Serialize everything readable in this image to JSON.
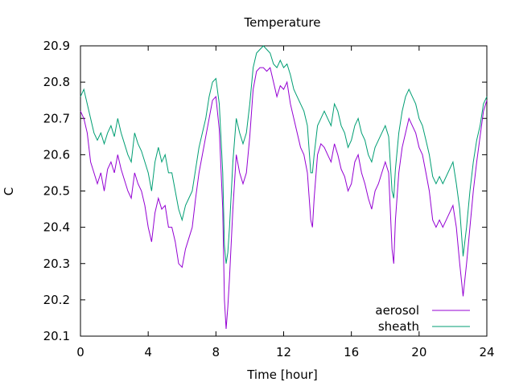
{
  "chart_data": {
    "type": "line",
    "title": "Temperature",
    "xlabel": "Time [hour]",
    "ylabel": "C",
    "xlim": [
      0,
      24
    ],
    "ylim": [
      20.1,
      20.9
    ],
    "xticks": [
      "0",
      "4",
      "8",
      "12",
      "16",
      "20",
      "24"
    ],
    "yticks": [
      "20.1",
      "20.2",
      "20.3",
      "20.4",
      "20.5",
      "20.6",
      "20.7",
      "20.8",
      "20.9"
    ],
    "grid": false,
    "legend_position": "bottom-right",
    "series": [
      {
        "name": "aerosol",
        "color": "#9400d3",
        "points": [
          [
            0.0,
            20.72
          ],
          [
            0.2,
            20.7
          ],
          [
            0.4,
            20.66
          ],
          [
            0.6,
            20.58
          ],
          [
            0.8,
            20.55
          ],
          [
            1.0,
            20.52
          ],
          [
            1.2,
            20.55
          ],
          [
            1.4,
            20.5
          ],
          [
            1.6,
            20.56
          ],
          [
            1.8,
            20.58
          ],
          [
            2.0,
            20.55
          ],
          [
            2.2,
            20.6
          ],
          [
            2.4,
            20.56
          ],
          [
            2.6,
            20.53
          ],
          [
            2.8,
            20.5
          ],
          [
            3.0,
            20.48
          ],
          [
            3.2,
            20.55
          ],
          [
            3.4,
            20.52
          ],
          [
            3.6,
            20.5
          ],
          [
            3.8,
            20.46
          ],
          [
            4.0,
            20.4
          ],
          [
            4.2,
            20.36
          ],
          [
            4.4,
            20.44
          ],
          [
            4.6,
            20.48
          ],
          [
            4.8,
            20.45
          ],
          [
            5.0,
            20.46
          ],
          [
            5.2,
            20.4
          ],
          [
            5.4,
            20.4
          ],
          [
            5.6,
            20.36
          ],
          [
            5.8,
            20.3
          ],
          [
            6.0,
            20.29
          ],
          [
            6.2,
            20.34
          ],
          [
            6.4,
            20.37
          ],
          [
            6.6,
            20.4
          ],
          [
            6.8,
            20.48
          ],
          [
            7.0,
            20.55
          ],
          [
            7.2,
            20.6
          ],
          [
            7.4,
            20.65
          ],
          [
            7.6,
            20.7
          ],
          [
            7.8,
            20.75
          ],
          [
            8.0,
            20.76
          ],
          [
            8.2,
            20.67
          ],
          [
            8.4,
            20.45
          ],
          [
            8.5,
            20.2
          ],
          [
            8.6,
            20.12
          ],
          [
            8.7,
            20.18
          ],
          [
            8.8,
            20.26
          ],
          [
            9.0,
            20.45
          ],
          [
            9.2,
            20.6
          ],
          [
            9.4,
            20.55
          ],
          [
            9.6,
            20.52
          ],
          [
            9.8,
            20.55
          ],
          [
            10.0,
            20.65
          ],
          [
            10.2,
            20.78
          ],
          [
            10.4,
            20.83
          ],
          [
            10.6,
            20.84
          ],
          [
            10.8,
            20.84
          ],
          [
            11.0,
            20.83
          ],
          [
            11.2,
            20.84
          ],
          [
            11.4,
            20.8
          ],
          [
            11.6,
            20.76
          ],
          [
            11.8,
            20.79
          ],
          [
            12.0,
            20.78
          ],
          [
            12.2,
            20.8
          ],
          [
            12.4,
            20.74
          ],
          [
            12.6,
            20.7
          ],
          [
            12.8,
            20.66
          ],
          [
            13.0,
            20.62
          ],
          [
            13.2,
            20.6
          ],
          [
            13.4,
            20.55
          ],
          [
            13.6,
            20.42
          ],
          [
            13.7,
            20.4
          ],
          [
            13.8,
            20.48
          ],
          [
            14.0,
            20.6
          ],
          [
            14.2,
            20.63
          ],
          [
            14.4,
            20.62
          ],
          [
            14.6,
            20.6
          ],
          [
            14.8,
            20.58
          ],
          [
            15.0,
            20.63
          ],
          [
            15.2,
            20.6
          ],
          [
            15.4,
            20.56
          ],
          [
            15.6,
            20.54
          ],
          [
            15.8,
            20.5
          ],
          [
            16.0,
            20.52
          ],
          [
            16.2,
            20.58
          ],
          [
            16.4,
            20.6
          ],
          [
            16.6,
            20.55
          ],
          [
            16.8,
            20.52
          ],
          [
            17.0,
            20.48
          ],
          [
            17.2,
            20.45
          ],
          [
            17.4,
            20.5
          ],
          [
            17.6,
            20.52
          ],
          [
            17.8,
            20.55
          ],
          [
            18.0,
            20.58
          ],
          [
            18.2,
            20.55
          ],
          [
            18.4,
            20.34
          ],
          [
            18.5,
            20.3
          ],
          [
            18.6,
            20.42
          ],
          [
            18.8,
            20.55
          ],
          [
            19.0,
            20.62
          ],
          [
            19.2,
            20.66
          ],
          [
            19.4,
            20.7
          ],
          [
            19.6,
            20.68
          ],
          [
            19.8,
            20.66
          ],
          [
            20.0,
            20.62
          ],
          [
            20.2,
            20.6
          ],
          [
            20.4,
            20.55
          ],
          [
            20.6,
            20.5
          ],
          [
            20.8,
            20.42
          ],
          [
            21.0,
            20.4
          ],
          [
            21.2,
            20.42
          ],
          [
            21.4,
            20.4
          ],
          [
            21.6,
            20.42
          ],
          [
            21.8,
            20.44
          ],
          [
            22.0,
            20.46
          ],
          [
            22.2,
            20.4
          ],
          [
            22.4,
            20.3
          ],
          [
            22.6,
            20.21
          ],
          [
            22.8,
            20.3
          ],
          [
            23.0,
            20.4
          ],
          [
            23.2,
            20.5
          ],
          [
            23.4,
            20.58
          ],
          [
            23.6,
            20.65
          ],
          [
            23.8,
            20.72
          ],
          [
            24.0,
            20.75
          ]
        ]
      },
      {
        "name": "sheath",
        "color": "#009e73",
        "points": [
          [
            0.0,
            20.76
          ],
          [
            0.2,
            20.78
          ],
          [
            0.4,
            20.74
          ],
          [
            0.6,
            20.7
          ],
          [
            0.8,
            20.66
          ],
          [
            1.0,
            20.64
          ],
          [
            1.2,
            20.66
          ],
          [
            1.4,
            20.63
          ],
          [
            1.6,
            20.66
          ],
          [
            1.8,
            20.68
          ],
          [
            2.0,
            20.65
          ],
          [
            2.2,
            20.7
          ],
          [
            2.4,
            20.66
          ],
          [
            2.6,
            20.63
          ],
          [
            2.8,
            20.6
          ],
          [
            3.0,
            20.58
          ],
          [
            3.2,
            20.66
          ],
          [
            3.4,
            20.63
          ],
          [
            3.6,
            20.61
          ],
          [
            3.8,
            20.58
          ],
          [
            4.0,
            20.55
          ],
          [
            4.2,
            20.5
          ],
          [
            4.4,
            20.58
          ],
          [
            4.6,
            20.62
          ],
          [
            4.8,
            20.58
          ],
          [
            5.0,
            20.6
          ],
          [
            5.2,
            20.55
          ],
          [
            5.4,
            20.55
          ],
          [
            5.6,
            20.5
          ],
          [
            5.8,
            20.45
          ],
          [
            6.0,
            20.42
          ],
          [
            6.2,
            20.46
          ],
          [
            6.4,
            20.48
          ],
          [
            6.6,
            20.5
          ],
          [
            6.8,
            20.56
          ],
          [
            7.0,
            20.62
          ],
          [
            7.2,
            20.66
          ],
          [
            7.4,
            20.7
          ],
          [
            7.6,
            20.76
          ],
          [
            7.8,
            20.8
          ],
          [
            8.0,
            20.81
          ],
          [
            8.2,
            20.74
          ],
          [
            8.4,
            20.55
          ],
          [
            8.5,
            20.35
          ],
          [
            8.6,
            20.3
          ],
          [
            8.7,
            20.33
          ],
          [
            8.8,
            20.4
          ],
          [
            9.0,
            20.58
          ],
          [
            9.2,
            20.7
          ],
          [
            9.4,
            20.66
          ],
          [
            9.6,
            20.63
          ],
          [
            9.8,
            20.66
          ],
          [
            10.0,
            20.74
          ],
          [
            10.2,
            20.84
          ],
          [
            10.4,
            20.88
          ],
          [
            10.6,
            20.89
          ],
          [
            10.8,
            20.9
          ],
          [
            11.0,
            20.89
          ],
          [
            11.2,
            20.88
          ],
          [
            11.4,
            20.85
          ],
          [
            11.6,
            20.84
          ],
          [
            11.8,
            20.86
          ],
          [
            12.0,
            20.84
          ],
          [
            12.2,
            20.85
          ],
          [
            12.4,
            20.82
          ],
          [
            12.6,
            20.78
          ],
          [
            12.8,
            20.76
          ],
          [
            13.0,
            20.74
          ],
          [
            13.2,
            20.72
          ],
          [
            13.4,
            20.68
          ],
          [
            13.6,
            20.55
          ],
          [
            13.7,
            20.55
          ],
          [
            13.8,
            20.6
          ],
          [
            14.0,
            20.68
          ],
          [
            14.2,
            20.7
          ],
          [
            14.4,
            20.72
          ],
          [
            14.6,
            20.7
          ],
          [
            14.8,
            20.68
          ],
          [
            15.0,
            20.74
          ],
          [
            15.2,
            20.72
          ],
          [
            15.4,
            20.68
          ],
          [
            15.6,
            20.66
          ],
          [
            15.8,
            20.62
          ],
          [
            16.0,
            20.64
          ],
          [
            16.2,
            20.68
          ],
          [
            16.4,
            20.7
          ],
          [
            16.6,
            20.66
          ],
          [
            16.8,
            20.64
          ],
          [
            17.0,
            20.6
          ],
          [
            17.2,
            20.58
          ],
          [
            17.4,
            20.62
          ],
          [
            17.6,
            20.64
          ],
          [
            17.8,
            20.66
          ],
          [
            18.0,
            20.68
          ],
          [
            18.2,
            20.65
          ],
          [
            18.4,
            20.5
          ],
          [
            18.5,
            20.48
          ],
          [
            18.6,
            20.56
          ],
          [
            18.8,
            20.66
          ],
          [
            19.0,
            20.72
          ],
          [
            19.2,
            20.76
          ],
          [
            19.4,
            20.78
          ],
          [
            19.6,
            20.76
          ],
          [
            19.8,
            20.74
          ],
          [
            20.0,
            20.7
          ],
          [
            20.2,
            20.68
          ],
          [
            20.4,
            20.64
          ],
          [
            20.6,
            20.6
          ],
          [
            20.8,
            20.54
          ],
          [
            21.0,
            20.52
          ],
          [
            21.2,
            20.54
          ],
          [
            21.4,
            20.52
          ],
          [
            21.6,
            20.54
          ],
          [
            21.8,
            20.56
          ],
          [
            22.0,
            20.58
          ],
          [
            22.2,
            20.52
          ],
          [
            22.4,
            20.45
          ],
          [
            22.6,
            20.32
          ],
          [
            22.8,
            20.4
          ],
          [
            23.0,
            20.5
          ],
          [
            23.2,
            20.58
          ],
          [
            23.4,
            20.64
          ],
          [
            23.6,
            20.68
          ],
          [
            23.8,
            20.74
          ],
          [
            24.0,
            20.76
          ]
        ]
      }
    ]
  }
}
